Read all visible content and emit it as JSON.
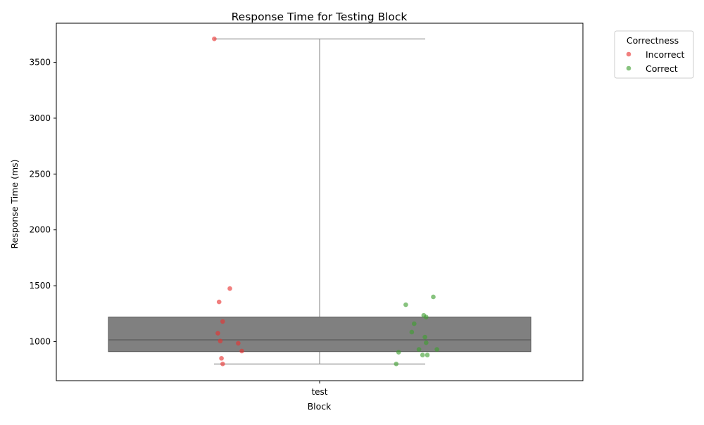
{
  "chart_data": {
    "type": "box+strip",
    "title": "Response Time for Testing Block",
    "xlabel": "Block",
    "ylabel": "Response Time (ms)",
    "categories": [
      "test"
    ],
    "ylim": [
      650,
      3850
    ],
    "yticks": [
      1000,
      1500,
      2000,
      2500,
      3000,
      3500
    ],
    "grid": false,
    "legend": {
      "title": "Correctness",
      "position": "outside-top-right",
      "entries": [
        {
          "name": "Incorrect",
          "color": "#e8302e"
        },
        {
          "name": "Correct",
          "color": "#3e9e2e"
        }
      ]
    },
    "box": {
      "category": "test",
      "min": 800,
      "q1": 910,
      "median": 1015,
      "q3": 1220,
      "max": 3710,
      "color": "#808080"
    },
    "series": [
      {
        "name": "Incorrect",
        "color": "#e8302e",
        "x_offset": [
          -0.44,
          -0.375,
          -0.42,
          -0.405,
          -0.425,
          -0.415,
          -0.34,
          -0.325,
          -0.41,
          -0.405
        ],
        "values": [
          3710,
          1475,
          1355,
          1180,
          1075,
          1005,
          985,
          915,
          850,
          800
        ]
      },
      {
        "name": "Correct",
        "color": "#3e9e2e",
        "x_offset": [
          0.475,
          0.36,
          0.435,
          0.445,
          0.395,
          0.385,
          0.44,
          0.445,
          0.415,
          0.49,
          0.33,
          0.43,
          0.45,
          0.32
        ],
        "values": [
          1400,
          1330,
          1235,
          1220,
          1160,
          1085,
          1040,
          990,
          930,
          930,
          905,
          880,
          880,
          800
        ]
      }
    ]
  }
}
